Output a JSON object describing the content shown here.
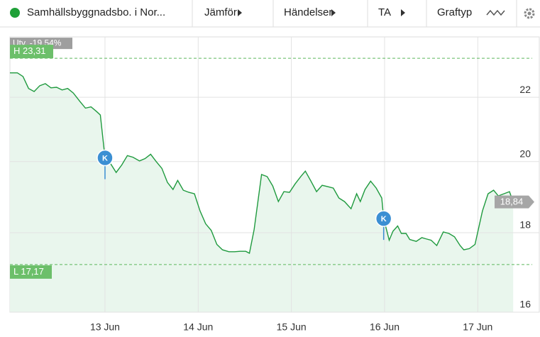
{
  "toolbar": {
    "instrument": "Samhällsbyggnadsbo. i Nor...",
    "items": [
      "Jämför",
      "Händelser",
      "TA",
      "Graftyp"
    ]
  },
  "chart_data": {
    "type": "line",
    "log_scale": true,
    "grid": true,
    "color": "#1f9a3e",
    "x": [
      11.98,
      12.06,
      12.12,
      12.18,
      12.24,
      12.3,
      12.36,
      12.42,
      12.48,
      12.54,
      12.6,
      12.66,
      12.73,
      12.79,
      12.85,
      12.91,
      12.95,
      13.0,
      13.06,
      13.12,
      13.18,
      13.24,
      13.3,
      13.37,
      13.43,
      13.49,
      13.55,
      13.61,
      13.67,
      13.73,
      13.78,
      13.84,
      13.9,
      13.96,
      14.02,
      14.08,
      14.14,
      14.2,
      14.26,
      14.33,
      14.39,
      14.45,
      14.51,
      14.55,
      14.6,
      14.68,
      14.74,
      14.8,
      14.86,
      14.92,
      14.98,
      15.04,
      15.1,
      15.15,
      15.21,
      15.27,
      15.33,
      15.39,
      15.45,
      15.51,
      15.57,
      15.64,
      15.7,
      15.74,
      15.79,
      15.85,
      15.91,
      15.97,
      15.99,
      16.05,
      16.09,
      16.14,
      16.18,
      16.23,
      16.27,
      16.34,
      16.4,
      16.44,
      16.5,
      16.56,
      16.63,
      16.69,
      16.75,
      16.81,
      16.85,
      16.91,
      16.97,
      17.05,
      17.11,
      17.17,
      17.22,
      17.28,
      17.34,
      17.38
    ],
    "values": [
      22.81,
      22.81,
      22.69,
      22.29,
      22.19,
      22.38,
      22.45,
      22.31,
      22.33,
      22.24,
      22.29,
      22.14,
      21.87,
      21.65,
      21.69,
      21.54,
      21.43,
      20.11,
      19.94,
      19.68,
      19.9,
      20.18,
      20.13,
      20.02,
      20.09,
      20.22,
      20.0,
      19.8,
      19.39,
      19.19,
      19.45,
      19.17,
      19.11,
      19.07,
      18.59,
      18.24,
      18.06,
      17.69,
      17.55,
      17.5,
      17.5,
      17.51,
      17.51,
      17.46,
      18.08,
      19.62,
      19.56,
      19.29,
      18.85,
      19.13,
      19.11,
      19.35,
      19.56,
      19.72,
      19.43,
      19.13,
      19.31,
      19.27,
      19.23,
      18.95,
      18.85,
      18.65,
      19.07,
      18.85,
      19.19,
      19.43,
      19.23,
      18.95,
      18.38,
      17.8,
      18.04,
      18.18,
      17.98,
      17.98,
      17.82,
      17.77,
      17.87,
      17.84,
      17.8,
      17.66,
      18.02,
      17.98,
      17.89,
      17.66,
      17.55,
      17.58,
      17.69,
      18.59,
      19.07,
      19.17,
      19.01,
      19.07,
      19.13,
      18.84
    ],
    "xlim": [
      11.98,
      17.66
    ],
    "ylim": [
      16,
      24.06
    ],
    "yticks": [
      16,
      18,
      20,
      22
    ],
    "xticks": [
      {
        "value": 13,
        "label": "13 Jun"
      },
      {
        "value": 14,
        "label": "14 Jun"
      },
      {
        "value": 15,
        "label": "15 Jun"
      },
      {
        "value": 16,
        "label": "16 Jun"
      },
      {
        "value": 17,
        "label": "17 Jun"
      }
    ],
    "change": {
      "value": -19.54,
      "label": "Utv. -19,54%"
    },
    "high": {
      "value": 23.31,
      "label": "H 23,31"
    },
    "low": {
      "value": 17.17,
      "label": "L 17,17"
    },
    "last": {
      "value": 18.84,
      "label": "18,84"
    },
    "events": [
      {
        "x": 13.0,
        "label": "K"
      },
      {
        "x": 15.99,
        "label": "K"
      }
    ]
  }
}
